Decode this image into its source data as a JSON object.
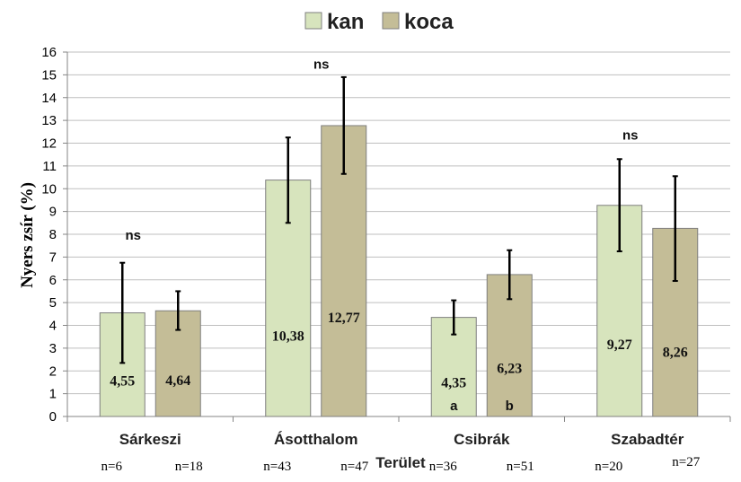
{
  "chart_data": {
    "type": "bar",
    "ylabel": "Nyers zsír (%)",
    "xlabel": "Terület",
    "ylim": [
      0,
      16
    ],
    "yticks": [
      "0",
      "1",
      "2",
      "3",
      "4",
      "5",
      "6",
      "7",
      "8",
      "9",
      "10",
      "11",
      "12",
      "13",
      "14",
      "15",
      "16"
    ],
    "categories": [
      "Sárkeszi",
      "Ásotthalom",
      "Csibrák",
      "Szabadtér"
    ],
    "series": [
      {
        "name": "kan",
        "color": "#d7e4bd",
        "values": [
          4.55,
          10.38,
          4.35,
          9.27
        ],
        "labels": [
          "4,55",
          "10,38",
          "4,35",
          "9,27"
        ],
        "err_low": [
          2.35,
          8.5,
          3.6,
          7.25
        ],
        "err_high": [
          6.75,
          12.25,
          5.1,
          11.3
        ],
        "n": [
          "n=6",
          "n=43",
          "n=36",
          "n=20"
        ],
        "sig": [
          "",
          "",
          "a",
          ""
        ]
      },
      {
        "name": "koca",
        "color": "#c4bd97",
        "values": [
          4.64,
          12.77,
          6.23,
          8.26
        ],
        "labels": [
          "4,64",
          "12,77",
          "6,23",
          "8,26"
        ],
        "err_low": [
          3.8,
          10.65,
          5.15,
          5.95
        ],
        "err_high": [
          5.5,
          14.9,
          7.3,
          10.55
        ],
        "n": [
          "n=18",
          "n=47",
          "n=51",
          "n=27"
        ],
        "sig": [
          "",
          "",
          "b",
          ""
        ]
      }
    ],
    "group_annotations": [
      "ns",
      "ns",
      "",
      "ns"
    ],
    "group_annotation_values": [
      8.0,
      15.5,
      null,
      12.4
    ],
    "legend": {
      "position": "top-center"
    },
    "grid": true
  }
}
